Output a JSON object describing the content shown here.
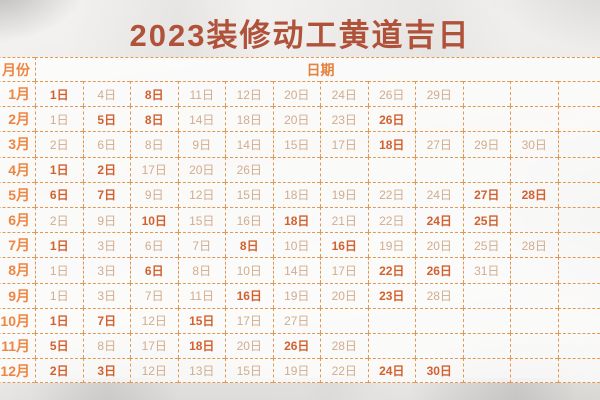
{
  "title": "2023装修动工黄道吉日",
  "colors": {
    "title": "#b0523a",
    "table_border": "#e09a56",
    "header_text": "#e5813d",
    "month_label": "#ee8643",
    "strong_day": "#d2612f",
    "normal_day": "#d2ac8e",
    "paper": "#efeeec"
  },
  "table": {
    "month_header": "月份",
    "date_header": "日期",
    "date_columns": 12,
    "rows": [
      {
        "month": "1月",
        "days": [
          {
            "d": "1日",
            "strong": true
          },
          {
            "d": "4日",
            "strong": false
          },
          {
            "d": "8日",
            "strong": true
          },
          {
            "d": "11日",
            "strong": false
          },
          {
            "d": "12日",
            "strong": false
          },
          {
            "d": "20日",
            "strong": false
          },
          {
            "d": "24日",
            "strong": false
          },
          {
            "d": "26日",
            "strong": false
          },
          {
            "d": "29日",
            "strong": false
          }
        ]
      },
      {
        "month": "2月",
        "days": [
          {
            "d": "1日",
            "strong": false
          },
          {
            "d": "5日",
            "strong": true
          },
          {
            "d": "8日",
            "strong": true
          },
          {
            "d": "14日",
            "strong": false
          },
          {
            "d": "18日",
            "strong": false
          },
          {
            "d": "20日",
            "strong": false
          },
          {
            "d": "23日",
            "strong": false
          },
          {
            "d": "26日",
            "strong": true
          }
        ]
      },
      {
        "month": "3月",
        "days": [
          {
            "d": "2日",
            "strong": false
          },
          {
            "d": "6日",
            "strong": false
          },
          {
            "d": "8日",
            "strong": false
          },
          {
            "d": "9日",
            "strong": false
          },
          {
            "d": "14日",
            "strong": false
          },
          {
            "d": "15日",
            "strong": false
          },
          {
            "d": "17日",
            "strong": false
          },
          {
            "d": "18日",
            "strong": true
          },
          {
            "d": "27日",
            "strong": false
          },
          {
            "d": "29日",
            "strong": false
          },
          {
            "d": "30日",
            "strong": false
          }
        ]
      },
      {
        "month": "4月",
        "days": [
          {
            "d": "1日",
            "strong": true
          },
          {
            "d": "2日",
            "strong": true
          },
          {
            "d": "17日",
            "strong": false
          },
          {
            "d": "20日",
            "strong": false
          },
          {
            "d": "26日",
            "strong": false
          }
        ]
      },
      {
        "month": "5月",
        "days": [
          {
            "d": "6日",
            "strong": true
          },
          {
            "d": "7日",
            "strong": true
          },
          {
            "d": "9日",
            "strong": false
          },
          {
            "d": "12日",
            "strong": false
          },
          {
            "d": "15日",
            "strong": false
          },
          {
            "d": "18日",
            "strong": false
          },
          {
            "d": "19日",
            "strong": false
          },
          {
            "d": "22日",
            "strong": false
          },
          {
            "d": "24日",
            "strong": false
          },
          {
            "d": "27日",
            "strong": true
          },
          {
            "d": "28日",
            "strong": true
          }
        ]
      },
      {
        "month": "6月",
        "days": [
          {
            "d": "2日",
            "strong": false
          },
          {
            "d": "9日",
            "strong": false
          },
          {
            "d": "10日",
            "strong": true
          },
          {
            "d": "15日",
            "strong": false
          },
          {
            "d": "16日",
            "strong": false
          },
          {
            "d": "18日",
            "strong": true
          },
          {
            "d": "21日",
            "strong": false
          },
          {
            "d": "22日",
            "strong": false
          },
          {
            "d": "24日",
            "strong": true
          },
          {
            "d": "25日",
            "strong": true
          }
        ]
      },
      {
        "month": "7月",
        "days": [
          {
            "d": "1日",
            "strong": true
          },
          {
            "d": "3日",
            "strong": false
          },
          {
            "d": "6日",
            "strong": false
          },
          {
            "d": "7日",
            "strong": false
          },
          {
            "d": "8日",
            "strong": true
          },
          {
            "d": "10日",
            "strong": false
          },
          {
            "d": "16日",
            "strong": true
          },
          {
            "d": "19日",
            "strong": false
          },
          {
            "d": "20日",
            "strong": false
          },
          {
            "d": "25日",
            "strong": false
          },
          {
            "d": "28日",
            "strong": false
          }
        ]
      },
      {
        "month": "8月",
        "days": [
          {
            "d": "1日",
            "strong": false
          },
          {
            "d": "3日",
            "strong": false
          },
          {
            "d": "6日",
            "strong": true
          },
          {
            "d": "8日",
            "strong": false
          },
          {
            "d": "10日",
            "strong": false
          },
          {
            "d": "14日",
            "strong": false
          },
          {
            "d": "17日",
            "strong": false
          },
          {
            "d": "22日",
            "strong": true
          },
          {
            "d": "26日",
            "strong": true
          },
          {
            "d": "31日",
            "strong": false
          }
        ]
      },
      {
        "month": "9月",
        "days": [
          {
            "d": "1日",
            "strong": false
          },
          {
            "d": "3日",
            "strong": false
          },
          {
            "d": "7日",
            "strong": false
          },
          {
            "d": "11日",
            "strong": false
          },
          {
            "d": "16日",
            "strong": true
          },
          {
            "d": "19日",
            "strong": false
          },
          {
            "d": "20日",
            "strong": false
          },
          {
            "d": "23日",
            "strong": true
          },
          {
            "d": "28日",
            "strong": false
          }
        ]
      },
      {
        "month": "10月",
        "days": [
          {
            "d": "1日",
            "strong": true
          },
          {
            "d": "7日",
            "strong": true
          },
          {
            "d": "12日",
            "strong": false
          },
          {
            "d": "15日",
            "strong": true
          },
          {
            "d": "17日",
            "strong": false
          },
          {
            "d": "27日",
            "strong": false
          }
        ]
      },
      {
        "month": "11月",
        "days": [
          {
            "d": "5日",
            "strong": true
          },
          {
            "d": "8日",
            "strong": false
          },
          {
            "d": "17日",
            "strong": false
          },
          {
            "d": "18日",
            "strong": true
          },
          {
            "d": "20日",
            "strong": false
          },
          {
            "d": "26日",
            "strong": true
          },
          {
            "d": "28日",
            "strong": false
          }
        ]
      },
      {
        "month": "12月",
        "days": [
          {
            "d": "2日",
            "strong": true
          },
          {
            "d": "3日",
            "strong": true
          },
          {
            "d": "12日",
            "strong": false
          },
          {
            "d": "13日",
            "strong": false
          },
          {
            "d": "15日",
            "strong": false
          },
          {
            "d": "19日",
            "strong": false
          },
          {
            "d": "22日",
            "strong": false
          },
          {
            "d": "24日",
            "strong": true
          },
          {
            "d": "30日",
            "strong": true
          }
        ]
      }
    ]
  }
}
